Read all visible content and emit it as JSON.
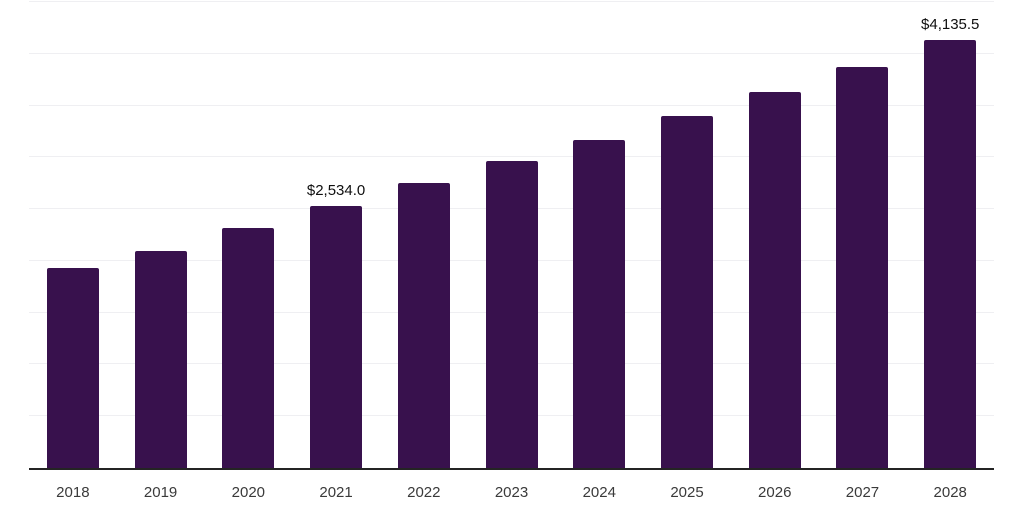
{
  "chart_data": {
    "type": "bar",
    "title": "",
    "xlabel": "",
    "ylabel": "",
    "categories": [
      "2018",
      "2019",
      "2020",
      "2021",
      "2022",
      "2023",
      "2024",
      "2025",
      "2026",
      "2027",
      "2028"
    ],
    "values": [
      1930,
      2100,
      2320,
      2534.0,
      2750,
      2960,
      3170,
      3400,
      3630,
      3870,
      4135.5
    ],
    "annotations": [
      {
        "category": "2021",
        "label": "$2,534.0"
      },
      {
        "category": "2028",
        "label": "$4,135.5"
      }
    ],
    "ylim": [
      0,
      4500
    ],
    "gridline_step": 500,
    "grid": true,
    "legend_position": "none",
    "y_axis_tick_labels_visible": false
  },
  "colors": {
    "background": "#ffffff",
    "bar": "#38114d",
    "gridline": "#efeff2",
    "axis_line": "#242424",
    "tick_label": "#3a3a3a",
    "data_label": "#0f0f0f"
  }
}
